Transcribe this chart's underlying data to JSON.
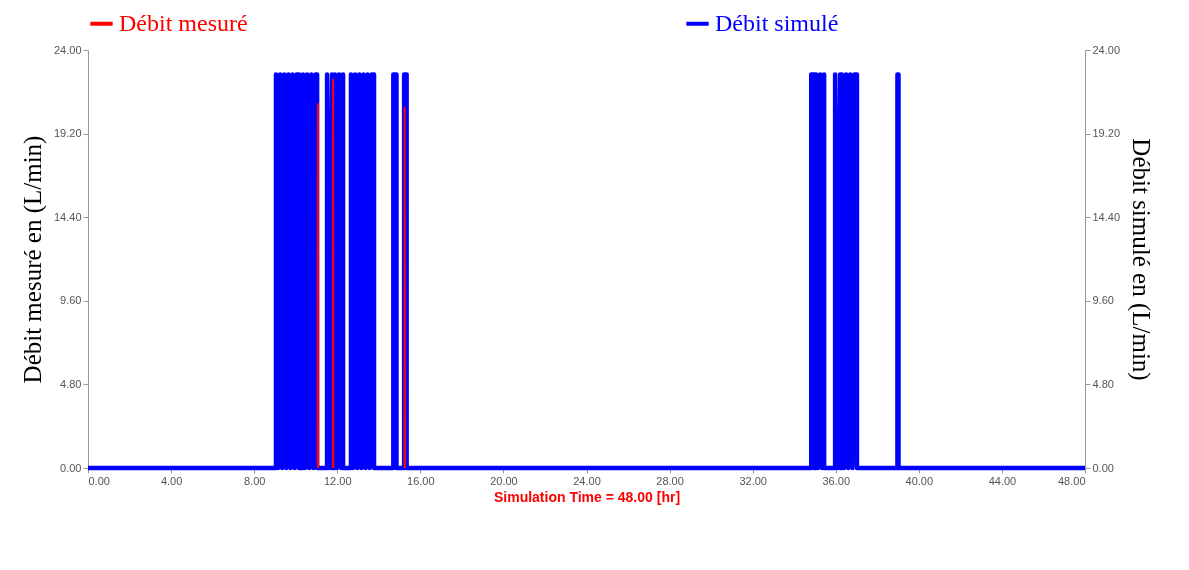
{
  "chart_data": {
    "type": "line",
    "xlabel": "Simulation Time =  48.00 [hr]",
    "ylabel": "Débit mesuré en (L/min)",
    "y2label": "Débit simulé en (L/min)",
    "xlim": [
      0,
      48
    ],
    "xticks": [
      {
        "value": 0,
        "label": "0.00"
      },
      {
        "value": 4,
        "label": "4.00"
      },
      {
        "value": 8,
        "label": "8.00"
      },
      {
        "value": 12,
        "label": "12.00"
      },
      {
        "value": 16,
        "label": "16.00"
      },
      {
        "value": 20,
        "label": "20.00"
      },
      {
        "value": 24,
        "label": "24.00"
      },
      {
        "value": 28,
        "label": "28.00"
      },
      {
        "value": 32,
        "label": "32.00"
      },
      {
        "value": 36,
        "label": "36.00"
      },
      {
        "value": 40,
        "label": "40.00"
      },
      {
        "value": 44,
        "label": "44.00"
      },
      {
        "value": 48,
        "label": "48.00"
      }
    ],
    "ylim": [
      0,
      24
    ],
    "yticks": [
      {
        "value": 0,
        "label": "0.00"
      },
      {
        "value": 4.8,
        "label": "4.80"
      },
      {
        "value": 9.6,
        "label": "9.60"
      },
      {
        "value": 14.4,
        "label": "14.40"
      },
      {
        "value": 19.2,
        "label": "19.20"
      },
      {
        "value": 24,
        "label": "24.00"
      }
    ],
    "y2lim": [
      0,
      24
    ],
    "y2ticks": [
      {
        "value": 0,
        "label": "0.00"
      },
      {
        "value": 4.8,
        "label": "4.80"
      },
      {
        "value": 9.6,
        "label": "9.60"
      },
      {
        "value": 14.4,
        "label": "14.40"
      },
      {
        "value": 19.2,
        "label": "19.20"
      },
      {
        "value": 24,
        "label": "24.00"
      }
    ],
    "grid": false,
    "legend": "top",
    "series": [
      {
        "name": "Débit mesuré",
        "color": "#ff0000",
        "x": [
          11.06,
          11.06,
          11.07,
          11.08,
          11.4,
          11.79,
          11.79,
          11.8,
          11.81,
          13.0,
          15.24,
          15.24,
          15.26
        ],
        "values": [
          0,
          10.85,
          20.9,
          0,
          null,
          0,
          13.9,
          22.3,
          0,
          null,
          0,
          20.7,
          0
        ]
      },
      {
        "name": "Débit simulé",
        "color": "#0000ff",
        "axis": "y2",
        "x": [
          0,
          9.05,
          9.05,
          9.15,
          9.25,
          9.35,
          9.45,
          9.55,
          9.65,
          9.75,
          9.85,
          9.95,
          10.05,
          10.16,
          10.16,
          10.35,
          10.35,
          10.45,
          10.55,
          10.65,
          10.75,
          10.85,
          10.95,
          11.03,
          11.03,
          11.51,
          11.51,
          11.63,
          11.75,
          11.75,
          11.89,
          11.89,
          11.99,
          12.09,
          12.19,
          12.28,
          12.28,
          12.66,
          12.66,
          12.76,
          12.86,
          12.96,
          13.06,
          13.16,
          13.26,
          13.36,
          13.46,
          13.56,
          13.66,
          13.77,
          13.77,
          14.7,
          14.7,
          14.85,
          14.85,
          15.22,
          15.22,
          15.34,
          15.34,
          34.82,
          34.82,
          34.96,
          34.96,
          35.05,
          35.05,
          35.15,
          35.25,
          35.35,
          35.44,
          35.44,
          35.97,
          35.97,
          36.09,
          36.21,
          36.21,
          36.3,
          36.3,
          36.4,
          36.5,
          36.6,
          36.7,
          36.8,
          36.9,
          37.02,
          37.02,
          38.97,
          38.97,
          39.02,
          39.02,
          48
        ],
        "values": [
          0,
          0,
          22.6,
          0,
          22.6,
          0,
          22.6,
          0,
          22.6,
          0,
          22.6,
          0,
          22.6,
          22.6,
          0,
          0,
          22.6,
          0,
          22.6,
          0,
          22.6,
          0,
          22.6,
          22.6,
          0,
          0,
          22.6,
          0,
          22.6,
          0,
          0,
          22.6,
          0,
          22.6,
          0,
          22.6,
          0,
          0,
          22.6,
          0,
          22.6,
          0,
          22.6,
          0,
          22.6,
          0,
          22.6,
          0,
          22.6,
          22.6,
          0,
          0,
          22.6,
          22.6,
          0,
          0,
          22.6,
          22.6,
          0,
          0,
          22.6,
          22.6,
          0,
          0,
          22.6,
          0,
          22.6,
          0,
          22.6,
          0,
          0,
          22.6,
          0,
          22.6,
          0,
          0,
          22.6,
          0,
          22.6,
          0,
          22.6,
          0,
          22.6,
          22.6,
          0,
          0,
          22.6,
          22.6,
          0,
          0
        ]
      }
    ]
  }
}
